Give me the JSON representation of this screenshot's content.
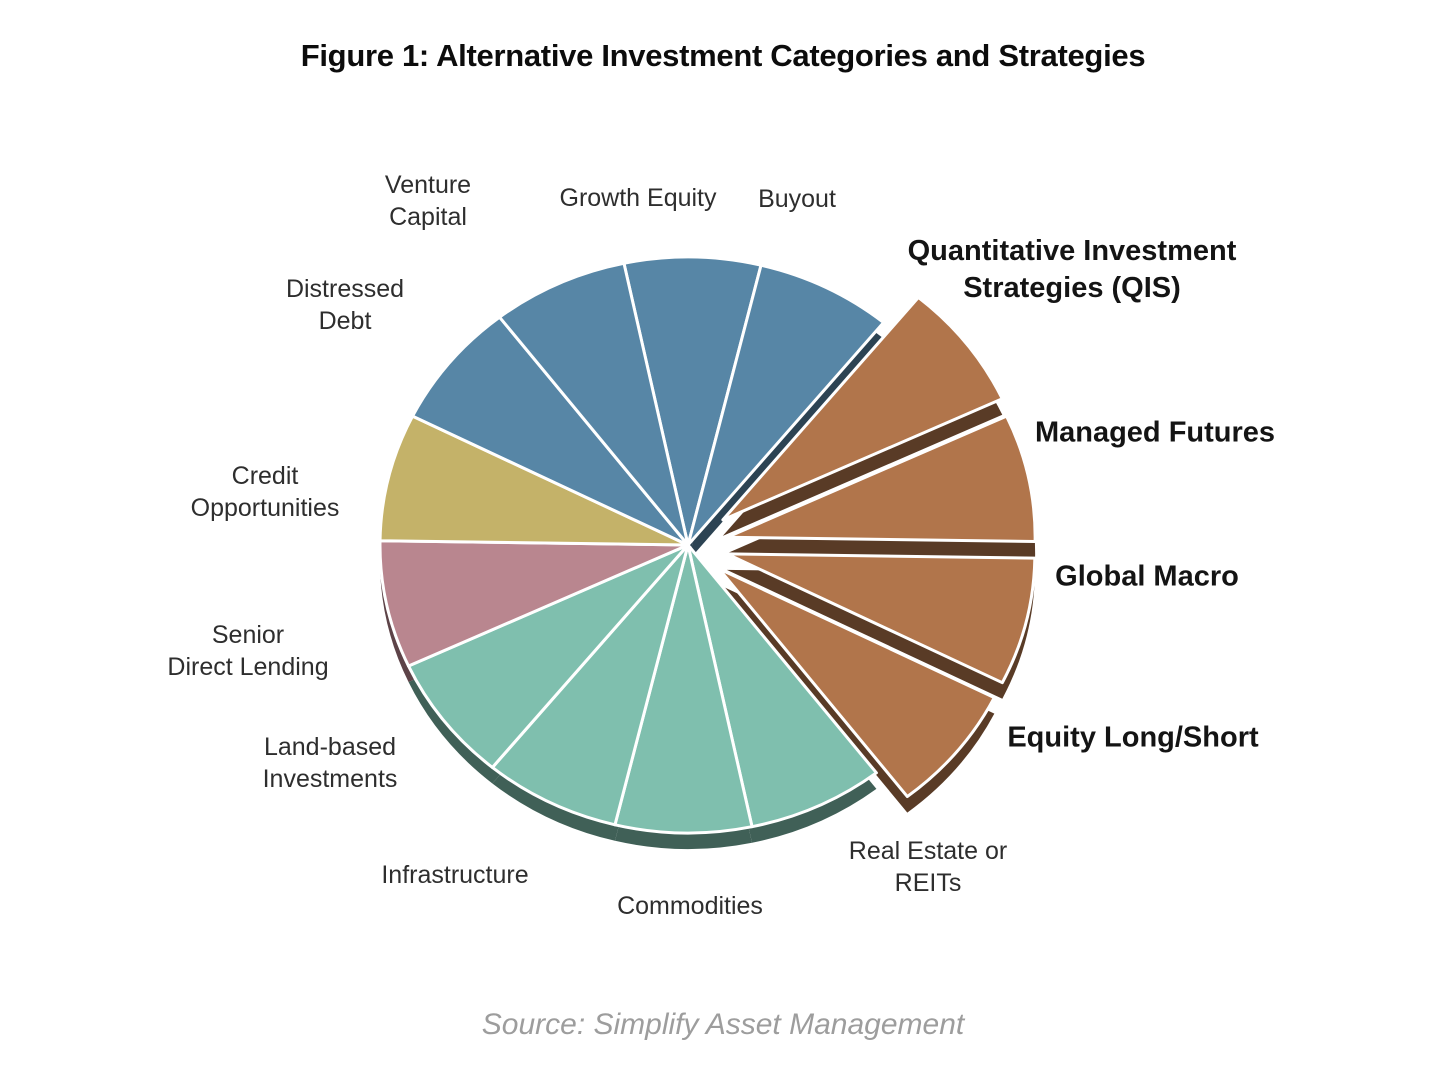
{
  "figure": {
    "title": "Figure 1: Alternative Investment Categories and Strategies",
    "source": "Source: Simplify Asset Management"
  },
  "chart_data": {
    "type": "pie",
    "title": "Alternative Investment Categories and Strategies",
    "legend": "none",
    "start_angle_deg": -12,
    "slices": [
      {
        "id": "growth-equity",
        "label": "Growth Equity",
        "value": 1,
        "color": "#5786a6",
        "explode": 0
      },
      {
        "id": "buyout",
        "label": "Buyout",
        "value": 1,
        "color": "#5786a6",
        "explode": 0
      },
      {
        "id": "qis",
        "label": "Quantitative Investment\nStrategies (QIS)",
        "value": 1,
        "color": "#b1754b",
        "explode": 44,
        "label_bold": true
      },
      {
        "id": "managed-futures",
        "label": "Managed Futures",
        "value": 1,
        "color": "#b1754b",
        "explode": 40,
        "label_bold": true
      },
      {
        "id": "global-macro",
        "label": "Global Macro",
        "value": 1,
        "color": "#b1754b",
        "explode": 40,
        "label_bold": true
      },
      {
        "id": "equity-long-short",
        "label": "Equity Long/Short",
        "value": 1,
        "color": "#b1754b",
        "explode": 40,
        "label_bold": true
      },
      {
        "id": "real-estate-reits",
        "label": "Real Estate or\nREITs",
        "value": 1,
        "color": "#7fbfae",
        "explode": 0
      },
      {
        "id": "commodities",
        "label": "Commodities",
        "value": 1,
        "color": "#7fbfae",
        "explode": 0
      },
      {
        "id": "infrastructure",
        "label": "Infrastructure",
        "value": 1,
        "color": "#7fbfae",
        "explode": 0
      },
      {
        "id": "land-based-investments",
        "label": "Land-based\nInvestments",
        "value": 1,
        "color": "#7fbfae",
        "explode": 0
      },
      {
        "id": "senior-direct-lending",
        "label": "Senior\nDirect Lending",
        "value": 1,
        "color": "#b9868f",
        "explode": 0
      },
      {
        "id": "credit-opportunities",
        "label": "Credit\nOpportunities",
        "value": 1,
        "color": "#c4b269",
        "explode": 0
      },
      {
        "id": "distressed-debt",
        "label": "Distressed\nDebt",
        "value": 1,
        "color": "#5786a6",
        "explode": 0
      },
      {
        "id": "venture-capital",
        "label": "Venture\nCapital",
        "value": 1,
        "color": "#5786a6",
        "explode": 0
      }
    ]
  }
}
